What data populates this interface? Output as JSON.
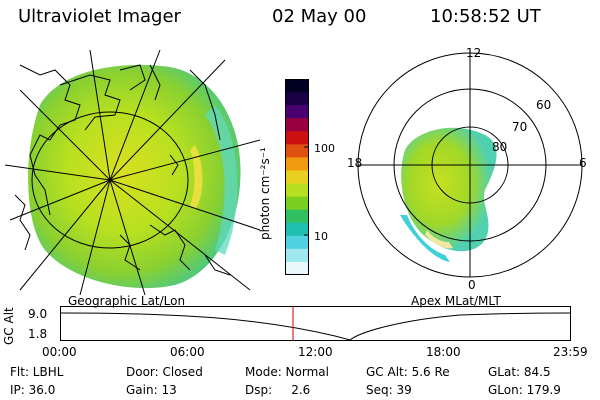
{
  "header": {
    "title": "Ultraviolet Imager",
    "date": "02 May 00",
    "time": "10:58:52 UT"
  },
  "left_panel": {
    "caption": "Geographic Lat/Lon"
  },
  "right_panel": {
    "caption": "Apex MLat/MLT",
    "mlt_labels": {
      "top": "12",
      "bottom": "0",
      "left": "18",
      "right": "6"
    },
    "lat_labels": [
      "60",
      "70",
      "80"
    ]
  },
  "colorbar": {
    "unit_label": "photon cm⁻²s⁻¹",
    "tick_labels": [
      "100",
      "10"
    ],
    "colors": [
      "#000022",
      "#1a0044",
      "#4a0070",
      "#9a0040",
      "#cc1010",
      "#e05010",
      "#f09a10",
      "#e8d020",
      "#b8e020",
      "#7ad020",
      "#30c060",
      "#20c0b0",
      "#50d0e0",
      "#a0e8f0",
      "#e8f8fa"
    ]
  },
  "altitude_plot": {
    "ylabel": "GC Alt",
    "y_ticks": [
      "9.0",
      "1.8"
    ],
    "x_ticks": [
      "00:00",
      "06:00",
      "12:00",
      "18:00",
      "23:59"
    ],
    "current_time_marker": "10:58:52",
    "current_marker_color": "#cc0000"
  },
  "footer": {
    "row1": [
      {
        "text": "Flt: LBHL"
      },
      {
        "text": "Door: Closed"
      },
      {
        "text": "Mode: Normal"
      },
      {
        "text": "GC Alt: 5.6 Re"
      },
      {
        "text": "GLat:  84.5"
      }
    ],
    "row2": [
      {
        "text": "IP: 36.0"
      },
      {
        "text": "Gain: 13"
      },
      {
        "text": "Dsp:     2.6"
      },
      {
        "text": "Seq: 39"
      },
      {
        "text": "GLon: 179.9"
      }
    ]
  }
}
